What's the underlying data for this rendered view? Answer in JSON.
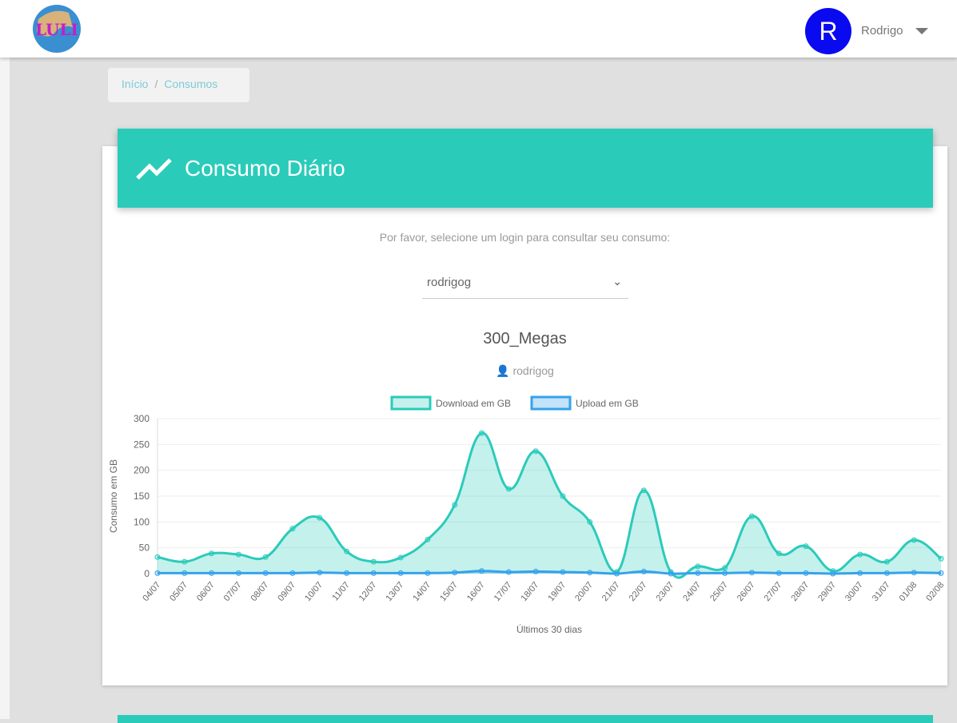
{
  "header": {
    "logo_text": "LULI",
    "avatar_letter": "R",
    "user_name": "Rodrigo"
  },
  "breadcrumb": {
    "home": "Início",
    "separator": "/",
    "current": "Consumos"
  },
  "card": {
    "title": "Consumo Diário",
    "prompt": "Por favor, selecione um login para consultar seu consumo:",
    "selected_login": "rodrigog",
    "plan": "300_Megas",
    "user": "rodrigog"
  },
  "colors": {
    "teal": "#2bcbba",
    "upload": "#36a2eb"
  },
  "chart_data": {
    "type": "line",
    "categories": [
      "04/07",
      "05/07",
      "06/07",
      "07/07",
      "08/07",
      "09/07",
      "10/07",
      "11/07",
      "12/07",
      "13/07",
      "14/07",
      "15/07",
      "16/07",
      "17/07",
      "18/07",
      "19/07",
      "20/07",
      "21/07",
      "22/07",
      "23/07",
      "24/07",
      "25/07",
      "26/07",
      "27/07",
      "28/07",
      "29/07",
      "30/07",
      "31/07",
      "01/08",
      "02/08"
    ],
    "series": [
      {
        "name": "Download em GB",
        "values": [
          32,
          23,
          39,
          37,
          32,
          87,
          108,
          43,
          23,
          31,
          66,
          133,
          272,
          164,
          237,
          150,
          100,
          3,
          161,
          3,
          14,
          11,
          111,
          39,
          53,
          5,
          37,
          23,
          65,
          29
        ]
      },
      {
        "name": "Upload em GB",
        "values": [
          1,
          1,
          1,
          1,
          1,
          1,
          2,
          1,
          1,
          1,
          1,
          2,
          5,
          3,
          4,
          3,
          2,
          0,
          4,
          0,
          1,
          1,
          2,
          1,
          1,
          0,
          1,
          1,
          2,
          1
        ]
      }
    ],
    "ylabel": "Consumo em GB",
    "xlabel": "Últimos 30 dias",
    "ylim": [
      0,
      300
    ],
    "yticks": [
      0,
      50,
      100,
      150,
      200,
      250,
      300
    ],
    "legend": "top",
    "grid": true
  }
}
